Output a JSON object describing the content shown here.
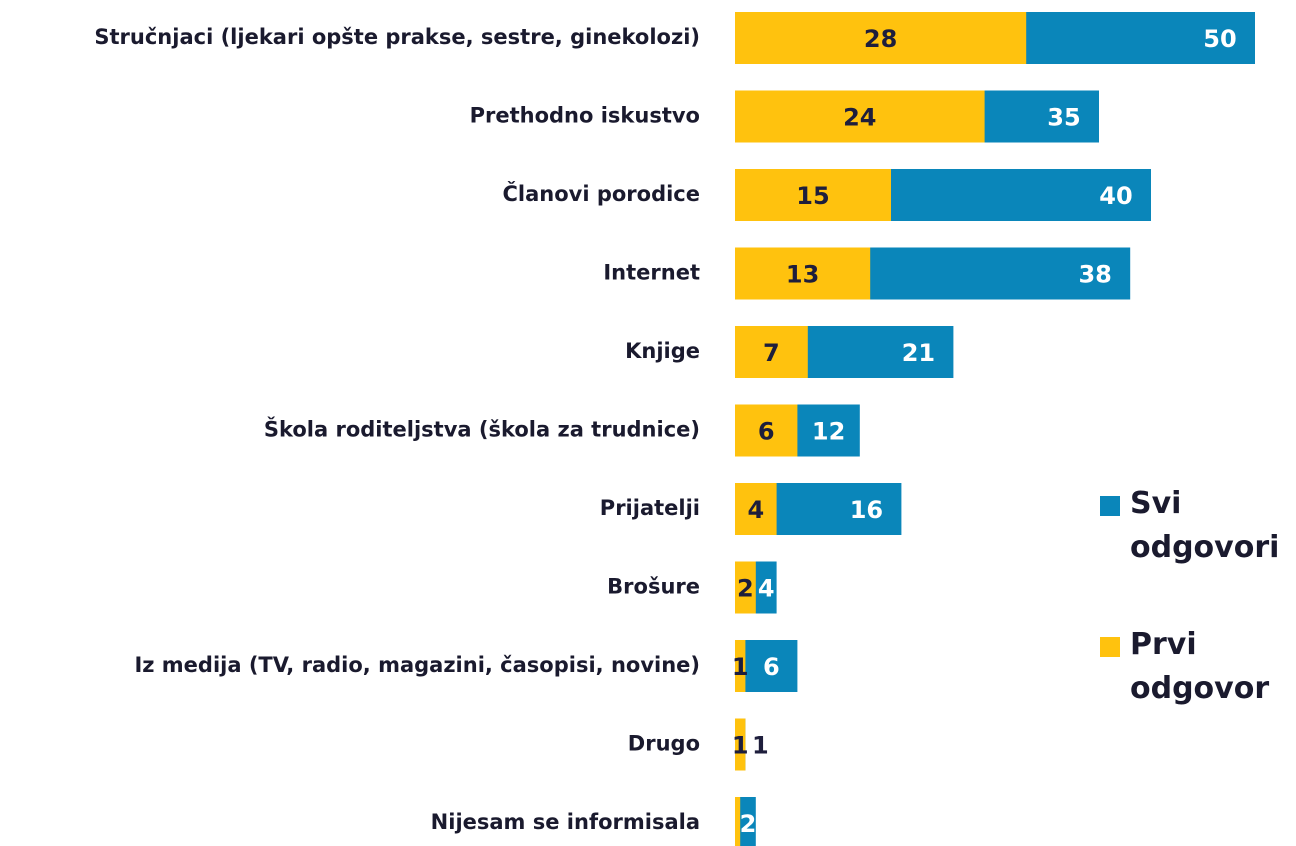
{
  "chart_data": {
    "type": "bar",
    "orientation": "horizontal",
    "overlap": true,
    "categories": [
      "Stručnjaci (ljekari opšte prakse, sestre, ginekolozi)",
      "Prethodno iskustvo",
      "Članovi porodice",
      "Internet",
      "Knjige",
      "Škola roditeljstva (škola za trudnice)",
      "Prijatelji",
      "Brošure",
      "Iz medija (TV, radio, magazini, časopisi, novine)",
      "Drugo",
      "Nijesam se informisala"
    ],
    "series": [
      {
        "name": "Svi odgovori",
        "color": "#0a86ba",
        "values": [
          50,
          35,
          40,
          38,
          21,
          12,
          16,
          4,
          6,
          1,
          2
        ]
      },
      {
        "name": "Prvi odgovor",
        "color": "#ffc20e",
        "values": [
          28,
          24,
          15,
          13,
          7,
          6,
          4,
          2,
          1,
          1,
          0.5
        ],
        "value_labels": [
          "28",
          "24",
          "15",
          "13",
          "7",
          "6",
          "4",
          "2",
          "1",
          "1",
          null
        ]
      }
    ],
    "xlim": [
      0,
      50
    ],
    "legend": "right"
  }
}
